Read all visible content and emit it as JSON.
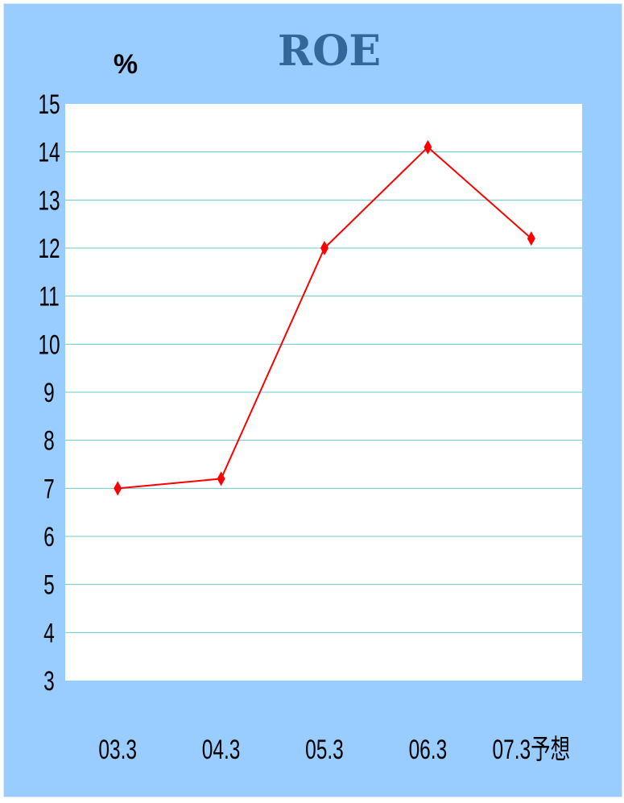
{
  "chart_data": {
    "type": "line",
    "title": "ROE",
    "unit_label": "%",
    "xlabel": "",
    "ylabel": "",
    "categories": [
      "03.3",
      "04.3",
      "05.3",
      "06.3",
      "07.3予想"
    ],
    "series": [
      {
        "values": [
          7.0,
          7.2,
          12.0,
          14.1,
          12.2
        ]
      }
    ],
    "ylim": [
      3,
      15
    ],
    "yticks": [
      3,
      4,
      5,
      6,
      7,
      8,
      9,
      10,
      11,
      12,
      13,
      14,
      15
    ],
    "grid": true,
    "legend": "none",
    "colors": {
      "background": "#99ccff",
      "plot_area": "#ffffff",
      "gridline": "#66cccc",
      "line": "#ff0000",
      "title": "#336699"
    }
  }
}
